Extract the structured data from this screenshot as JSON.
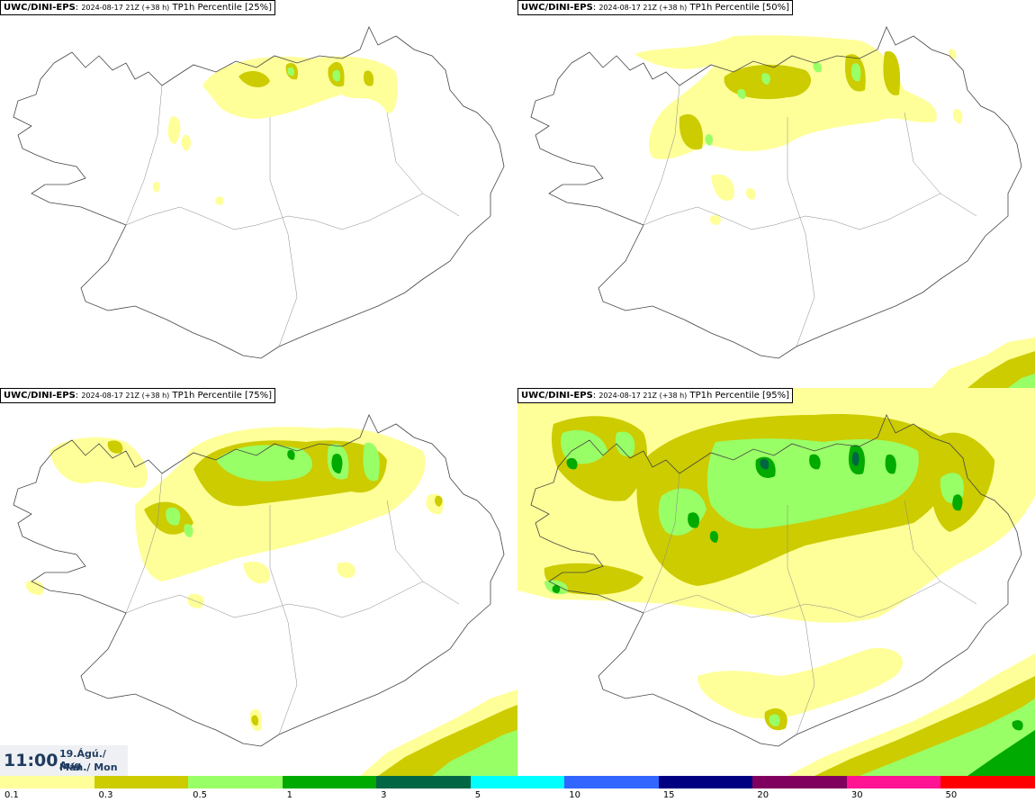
{
  "panels": [
    {
      "model": "UWC/DINI-EPS",
      "run": "2024-08-17 21Z (+38 h)",
      "product": "TP1h Percentile [25%]"
    },
    {
      "model": "UWC/DINI-EPS",
      "run": "2024-08-17 21Z (+38 h)",
      "product": "TP1h Percentile [50%]"
    },
    {
      "model": "UWC/DINI-EPS",
      "run": "2024-08-17 21Z (+38 h)",
      "product": "TP1h Percentile [75%]"
    },
    {
      "model": "UWC/DINI-EPS",
      "run": "2024-08-17 21Z (+38 h)",
      "product": "TP1h Percentile [95%]"
    }
  ],
  "valid_time": {
    "time": "11:00",
    "date_line": "19.Ágú./ Aug",
    "day_line": "Mán./ Mon"
  },
  "legend": {
    "labels": [
      "0.1",
      "0.3",
      "0.5",
      "1",
      "3",
      "5",
      "10",
      "15",
      "20",
      "30",
      "50"
    ],
    "colors": [
      "#ffff99",
      "#cccc00",
      "#99ff66",
      "#00aa00",
      "#006644",
      "#00ffff",
      "#3366ff",
      "#000080",
      "#800060",
      "#ff1493",
      "#ff0000"
    ]
  }
}
